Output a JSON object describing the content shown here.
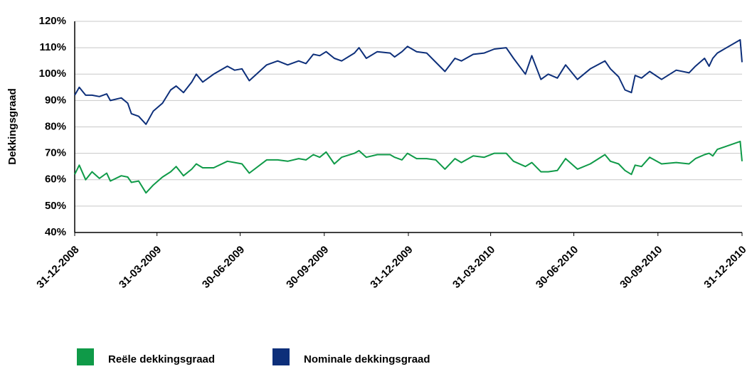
{
  "chart_data": {
    "type": "line",
    "y_label": "Dekkingsgraad",
    "x": [
      "31-12-2008",
      "05-01-2009",
      "12-01-2009",
      "19-01-2009",
      "27-01-2009",
      "04-02-2009",
      "08-02-2009",
      "20-02-2009",
      "27-02-2009",
      "03-03-2009",
      "11-03-2009",
      "19-03-2009",
      "27-03-2009",
      "06-04-2009",
      "15-04-2009",
      "21-04-2009",
      "29-04-2009",
      "08-05-2009",
      "13-05-2009",
      "20-05-2009",
      "01-06-2009",
      "16-06-2009",
      "24-06-2009",
      "02-07-2009",
      "10-07-2009",
      "29-07-2009",
      "10-08-2009",
      "21-08-2009",
      "02-09-2009",
      "10-09-2009",
      "18-09-2009",
      "25-09-2009",
      "02-10-2009",
      "11-10-2009",
      "19-10-2009",
      "02-11-2009",
      "07-11-2009",
      "15-11-2009",
      "27-11-2009",
      "11-12-2009",
      "16-12-2009",
      "24-12-2009",
      "30-12-2009",
      "09-01-2010",
      "20-01-2010",
      "30-01-2010",
      "09-02-2010",
      "20-02-2010",
      "27-02-2010",
      "12-03-2010",
      "24-03-2010",
      "04-04-2010",
      "17-04-2010",
      "25-04-2010",
      "08-05-2010",
      "15-05-2010",
      "25-05-2010",
      "02-06-2010",
      "12-06-2010",
      "21-06-2010",
      "04-07-2010",
      "18-07-2010",
      "03-08-2010",
      "09-08-2010",
      "18-08-2010",
      "25-08-2010",
      "01-09-2010",
      "05-09-2010",
      "12-09-2010",
      "21-09-2010",
      "04-10-2010",
      "20-10-2010",
      "03-11-2010",
      "10-11-2010",
      "20-11-2010",
      "25-11-2010",
      "29-11-2010",
      "04-12-2010",
      "29-12-2010",
      "31-12-2010"
    ],
    "series": [
      {
        "name": "Reële dekkingsgraad",
        "color": "#0f9a48",
        "values": [
          62,
          65.5,
          60,
          63,
          60.5,
          62.5,
          59.5,
          61.5,
          61,
          59,
          59.5,
          55,
          58,
          61,
          63,
          65,
          61.5,
          64,
          66,
          64.5,
          64.5,
          67,
          66.5,
          66,
          62.5,
          67.5,
          67.5,
          67,
          68,
          67.5,
          69.5,
          68.5,
          70.5,
          66,
          68.5,
          70,
          71,
          68.5,
          69.5,
          69.5,
          68.5,
          67.5,
          70,
          68,
          68,
          67.5,
          64,
          68,
          66.5,
          69,
          68.5,
          70,
          70,
          67,
          65,
          66.5,
          63,
          63,
          63.5,
          68,
          64,
          66,
          69.5,
          67,
          66,
          63.5,
          62,
          65.5,
          65,
          68.5,
          66,
          66.5,
          66,
          68,
          69.5,
          70,
          69,
          71.5,
          74.5,
          67
        ]
      },
      {
        "name": "Nominale dekkingsgraad",
        "color": "#0d2f7a",
        "values": [
          92,
          95,
          92,
          92,
          91.5,
          92.5,
          90,
          91,
          89,
          85,
          84,
          81,
          86,
          89,
          94,
          95.5,
          93,
          97,
          100,
          97,
          100,
          103,
          101.5,
          102,
          97.5,
          103.5,
          105,
          103.5,
          105,
          104,
          107.5,
          107,
          108.5,
          106,
          105,
          108,
          110,
          106,
          108.5,
          108,
          106.5,
          108.5,
          110.5,
          108.5,
          108,
          104.5,
          101,
          106,
          105,
          107.5,
          108,
          109.5,
          110,
          106,
          100,
          107,
          98,
          100,
          98.5,
          103.5,
          98,
          102,
          105,
          102,
          99,
          94,
          93,
          99.5,
          98.5,
          101,
          98,
          101.5,
          100.5,
          103,
          106,
          103,
          106,
          108,
          113,
          104.5
        ]
      }
    ],
    "xlim": [
      "31-12-2008",
      "31-12-2010"
    ],
    "xticks": [
      "31-12-2008",
      "31-03-2009",
      "30-06-2009",
      "30-09-2009",
      "31-12-2009",
      "31-03-2010",
      "30-06-2010",
      "30-09-2010",
      "31-12-2010"
    ],
    "ylim": [
      40,
      120
    ],
    "yticks": [
      {
        "value": 40,
        "label": "40%"
      },
      {
        "value": 50,
        "label": "50%"
      },
      {
        "value": 60,
        "label": "60%"
      },
      {
        "value": 70,
        "label": "70%"
      },
      {
        "value": 80,
        "label": "80%"
      },
      {
        "value": 90,
        "label": "90%"
      },
      {
        "value": 100,
        "label": "100%"
      },
      {
        "value": 110,
        "label": "110%"
      },
      {
        "value": 120,
        "label": "120%"
      }
    ],
    "grid": true
  }
}
